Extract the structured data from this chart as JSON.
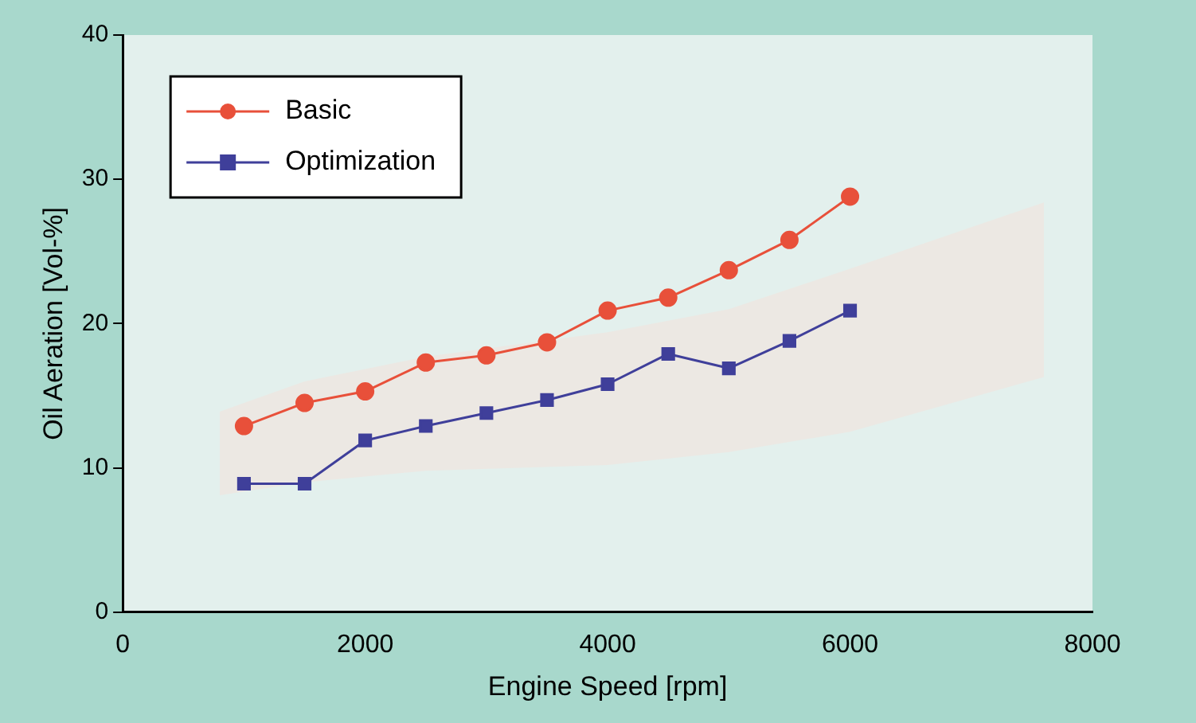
{
  "chart_data": {
    "type": "line",
    "xlabel": "Engine Speed [rpm]",
    "ylabel": "Oil Aeration [Vol-%]",
    "xlim": [
      0,
      8000
    ],
    "xticks": [
      0,
      2000,
      4000,
      6000,
      8000
    ],
    "ylim": [
      0,
      40
    ],
    "yticks": [
      0,
      10,
      20,
      30,
      40
    ],
    "x": [
      1000,
      1500,
      2000,
      2500,
      3000,
      3500,
      4000,
      4500,
      5000,
      5500,
      6000
    ],
    "series": [
      {
        "name": "Basic",
        "color": "#e8503a",
        "marker": "circle",
        "values": [
          12.9,
          14.5,
          15.3,
          17.3,
          17.8,
          18.7,
          20.9,
          21.8,
          23.7,
          25.8,
          28.8
        ]
      },
      {
        "name": "Optimization",
        "color": "#3f3f9a",
        "marker": "square",
        "values": [
          8.9,
          8.9,
          11.9,
          12.9,
          13.8,
          14.7,
          15.8,
          17.9,
          16.9,
          18.8,
          20.9
        ]
      },
      {
        "type": "area",
        "color": "#ece8e3",
        "x": [
          800,
          1500,
          2500,
          4000,
          5000,
          6000,
          7600
        ],
        "values": [
          null,
          null,
          null,
          null,
          null,
          null,
          null
        ],
        "lower": [
          8.1,
          9,
          9.8,
          10.2,
          11.1,
          12.5,
          16.3
        ],
        "upper": [
          13.9,
          16,
          17.7,
          19.4,
          21,
          23.8,
          28.4
        ]
      }
    ],
    "grid": false,
    "legend": "top left"
  }
}
